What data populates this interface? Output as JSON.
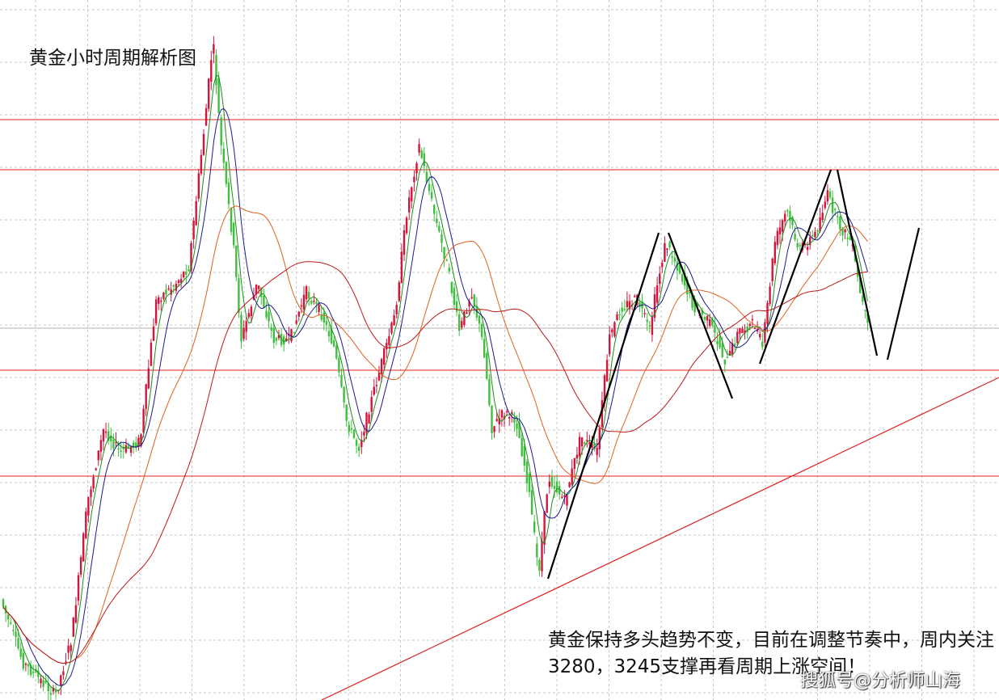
{
  "chart_data": {
    "type": "candlestick",
    "title": "黄金小时周期解析图",
    "annotation": "黄金保持多头趋势不变，目前在调整节奏中，周内关注3280，3245支撑再看周期上涨空间！",
    "watermark": "搜狐号@分析师山海",
    "grid": true,
    "colors": {
      "up_candle": "#d4143c",
      "down_candle": "#3ec03e",
      "ma_fast": "#1e8c1e",
      "ma_mid": "#1a1a8c",
      "ma_slow": "#e06020",
      "ma_long": "#c01818",
      "level_line": "#e02020",
      "trend_line": "#000000"
    },
    "support_levels": [
      3245,
      3280
    ],
    "pattern": "zigzag"
  }
}
